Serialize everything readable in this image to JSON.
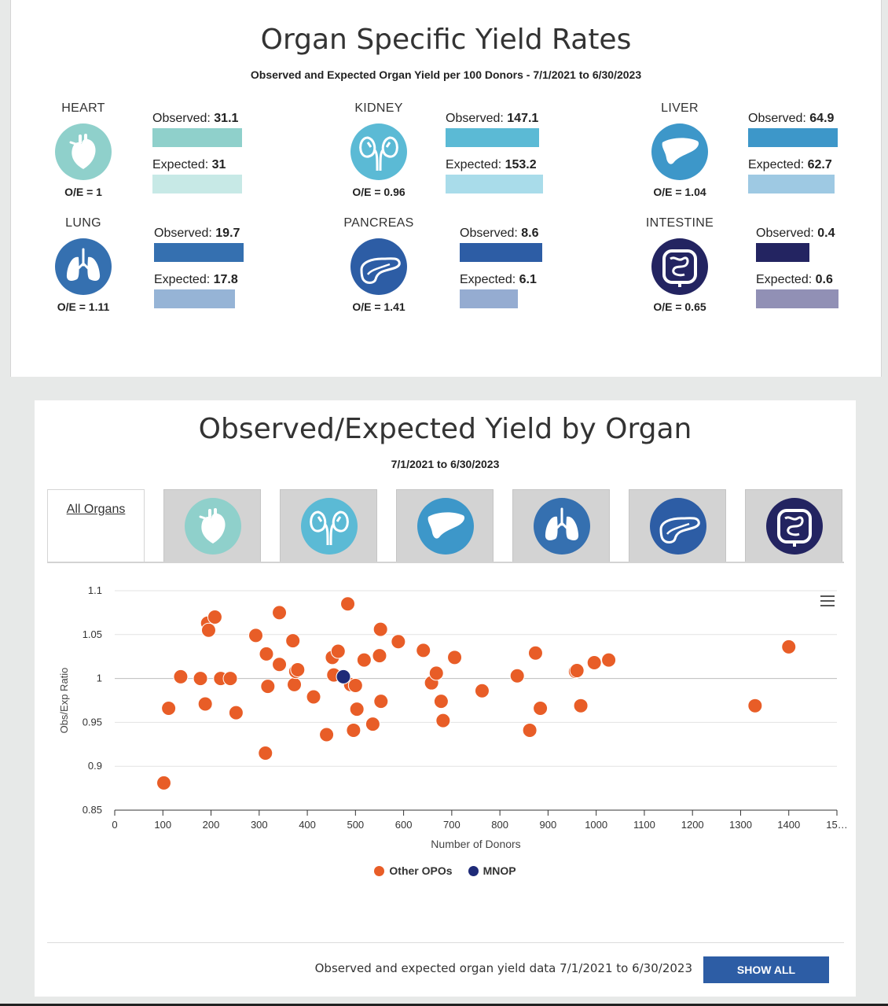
{
  "yield_rates": {
    "title": "Organ Specific Yield Rates",
    "subtitle": "Observed and Expected Organ Yield per 100 Donors - 7/1/2021 to 6/30/2023",
    "observed_label": "Observed: ",
    "expected_label": "Expected: ",
    "organs": [
      {
        "name": "HEART",
        "icon": "heart-icon",
        "color": "#8fd0cb",
        "observed": "31.1",
        "expected": "31",
        "oe": "O/E = 1",
        "obs_value": 31.1,
        "exp_value": 31,
        "obs_color": "#8fd0cb",
        "exp_color": "#c7e9e6"
      },
      {
        "name": "KIDNEY",
        "icon": "kidney-icon",
        "color": "#5bbad5",
        "observed": "147.1",
        "expected": "153.2",
        "oe": "O/E = 0.96",
        "obs_value": 147.1,
        "exp_value": 153.2,
        "obs_color": "#5bbad5",
        "exp_color": "#a9dcea"
      },
      {
        "name": "LIVER",
        "icon": "liver-icon",
        "color": "#3d97c9",
        "observed": "64.9",
        "expected": "62.7",
        "oe": "O/E = 1.04",
        "obs_value": 64.9,
        "exp_value": 62.7,
        "obs_color": "#3d97c9",
        "exp_color": "#9ec9e3"
      },
      {
        "name": "LUNG",
        "icon": "lung-icon",
        "color": "#3570b0",
        "observed": "19.7",
        "expected": "17.8",
        "oe": "O/E = 1.11",
        "obs_value": 19.7,
        "exp_value": 17.8,
        "obs_color": "#3570b0",
        "exp_color": "#96b4d6"
      },
      {
        "name": "PANCREAS",
        "icon": "pancreas-icon",
        "color": "#2d5da5",
        "observed": "8.6",
        "expected": "6.1",
        "oe": "O/E = 1.41",
        "obs_value": 8.6,
        "exp_value": 6.1,
        "obs_color": "#2d5da5",
        "exp_color": "#95acd1"
      },
      {
        "name": "INTESTINE",
        "icon": "intestine-icon",
        "color": "#232461",
        "observed": "0.4",
        "expected": "0.6",
        "oe": "O/E = 0.65",
        "obs_value": 0.4,
        "exp_value": 0.6,
        "obs_color": "#232461",
        "exp_color": "#9190b5"
      }
    ]
  },
  "oe_chart": {
    "title": "Observed/Expected Yield by Organ",
    "subtitle": "7/1/2021 to 6/30/2023",
    "tabs": [
      {
        "label": "All Organs",
        "icon": ""
      },
      {
        "label": "",
        "icon": "heart-icon",
        "color": "#8fd0cb"
      },
      {
        "label": "",
        "icon": "kidney-icon",
        "color": "#5bbad5"
      },
      {
        "label": "",
        "icon": "liver-icon",
        "color": "#3d97c9"
      },
      {
        "label": "",
        "icon": "lung-icon",
        "color": "#3570b0"
      },
      {
        "label": "",
        "icon": "pancreas-icon",
        "color": "#2d5da5"
      },
      {
        "label": "",
        "icon": "intestine-icon",
        "color": "#232461"
      }
    ],
    "footer_text": "Observed and expected organ yield data 7/1/2021 to 6/30/2023",
    "show_all_label": "SHOW ALL"
  },
  "chart_data": {
    "type": "scatter",
    "xlabel": "Number of Donors",
    "ylabel": "Obs/Exp Ratio",
    "xlim": [
      0,
      1500
    ],
    "ylim": [
      0.85,
      1.1
    ],
    "x_ticks": [
      "0",
      "100",
      "200",
      "300",
      "400",
      "500",
      "600",
      "700",
      "800",
      "900",
      "1000",
      "1100",
      "1200",
      "1300",
      "1400",
      "15…"
    ],
    "y_ticks": [
      "0.85",
      "0.9",
      "0.95",
      "1",
      "1.05",
      "1.1"
    ],
    "grid": true,
    "legend_position": "bottom",
    "series": [
      {
        "name": "Other OPOs",
        "color": "#e85d27",
        "points": [
          [
            102,
            0.881
          ],
          [
            112,
            0.966
          ],
          [
            137,
            1.002
          ],
          [
            178,
            1.0
          ],
          [
            188,
            0.971
          ],
          [
            193,
            1.063
          ],
          [
            195,
            1.055
          ],
          [
            208,
            1.07
          ],
          [
            220,
            1.0
          ],
          [
            240,
            1.0
          ],
          [
            252,
            0.961
          ],
          [
            293,
            1.049
          ],
          [
            313,
            0.915
          ],
          [
            315,
            1.028
          ],
          [
            318,
            0.991
          ],
          [
            342,
            1.075
          ],
          [
            342,
            1.016
          ],
          [
            370,
            1.043
          ],
          [
            373,
            0.993
          ],
          [
            376,
            1.008
          ],
          [
            380,
            1.01
          ],
          [
            413,
            0.979
          ],
          [
            440,
            0.936
          ],
          [
            452,
            1.024
          ],
          [
            455,
            1.004
          ],
          [
            464,
            1.031
          ],
          [
            484,
            1.085
          ],
          [
            490,
            0.993
          ],
          [
            496,
            0.941
          ],
          [
            500,
            0.992
          ],
          [
            503,
            0.965
          ],
          [
            518,
            1.021
          ],
          [
            536,
            0.948
          ],
          [
            550,
            1.026
          ],
          [
            552,
            1.056
          ],
          [
            553,
            0.974
          ],
          [
            589,
            1.042
          ],
          [
            641,
            1.032
          ],
          [
            658,
            0.995
          ],
          [
            668,
            1.006
          ],
          [
            678,
            0.974
          ],
          [
            682,
            0.952
          ],
          [
            706,
            1.024
          ],
          [
            763,
            0.986
          ],
          [
            836,
            1.003
          ],
          [
            862,
            0.941
          ],
          [
            874,
            1.029
          ],
          [
            884,
            0.966
          ],
          [
            957,
            1.008
          ],
          [
            960,
            1.009
          ],
          [
            968,
            0.969
          ],
          [
            996,
            1.018
          ],
          [
            1026,
            1.021
          ],
          [
            1330,
            0.969
          ],
          [
            1400,
            1.036
          ]
        ]
      },
      {
        "name": "MNOP",
        "color": "#1e2a78",
        "points": [
          [
            475,
            1.002
          ]
        ]
      }
    ]
  }
}
